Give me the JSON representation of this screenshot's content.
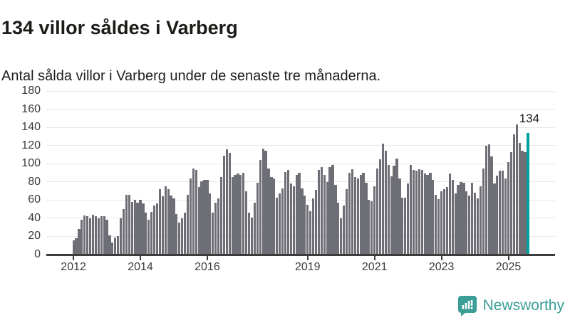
{
  "header": {
    "title": "134 villor såldes i Varberg",
    "subtitle": "Antal sålda villor i Varberg under de senaste tre månaderna."
  },
  "chart_data": {
    "type": "bar",
    "title": "134 villor såldes i Varberg",
    "subtitle": "Antal sålda villor i Varberg under de senaste tre månaderna.",
    "x_start": "2012-01",
    "x_end": "2025-08",
    "frequency": "monthly",
    "ylim": [
      0,
      180
    ],
    "grid": true,
    "legend_position": "none",
    "y_ticks": [
      0,
      20,
      40,
      60,
      80,
      100,
      120,
      140,
      160,
      180
    ],
    "x_ticks": [
      {
        "label": "2012",
        "month_index": 0
      },
      {
        "label": "2014",
        "month_index": 24
      },
      {
        "label": "2016",
        "month_index": 48
      },
      {
        "label": "2019",
        "month_index": 84
      },
      {
        "label": "2021",
        "month_index": 108
      },
      {
        "label": "2023",
        "month_index": 132
      },
      {
        "label": "2025",
        "month_index": 156
      }
    ],
    "series": [
      {
        "name": "Antal sålda villor, rullande tre månader",
        "values": [
          16,
          18,
          28,
          38,
          43,
          42,
          40,
          44,
          42,
          40,
          42,
          42,
          38,
          21,
          13,
          19,
          20,
          40,
          50,
          66,
          66,
          58,
          60,
          57,
          60,
          56,
          46,
          38,
          47,
          54,
          56,
          72,
          64,
          75,
          72,
          65,
          62,
          45,
          35,
          40,
          46,
          66,
          84,
          95,
          93,
          74,
          81,
          82,
          82,
          67,
          46,
          57,
          62,
          85,
          109,
          116,
          112,
          85,
          88,
          89,
          88,
          90,
          70,
          46,
          41,
          57,
          79,
          104,
          117,
          114,
          95,
          85,
          84,
          63,
          67,
          73,
          91,
          93,
          78,
          75,
          88,
          90,
          73,
          65,
          55,
          48,
          62,
          71,
          93,
          96,
          88,
          80,
          96,
          99,
          77,
          57,
          40,
          54,
          72,
          90,
          94,
          85,
          84,
          88,
          90,
          79,
          60,
          59,
          75,
          95,
          105,
          122,
          114,
          99,
          86,
          98,
          106,
          84,
          63,
          63,
          78,
          99,
          93,
          92,
          94,
          93,
          89,
          88,
          90,
          82,
          66,
          61,
          70,
          72,
          74,
          89,
          82,
          67,
          77,
          80,
          79,
          70,
          65,
          79,
          68,
          62,
          75,
          95,
          120,
          121,
          108,
          78,
          87,
          92,
          92,
          84,
          102,
          113,
          132,
          143,
          123,
          114,
          113,
          134
        ]
      }
    ],
    "highlight": {
      "index": 163,
      "value": 134,
      "label": "134"
    },
    "colors": {
      "bar": "#6e6e76",
      "highlight": "#00a0a0",
      "grid": "#e7e7e7",
      "axis": "#3d3d3d"
    }
  },
  "footer": {
    "brand": "Newsworthy",
    "logo_icon": "bar-chart-speech-bubble",
    "logo_color": "#3a9e96"
  }
}
